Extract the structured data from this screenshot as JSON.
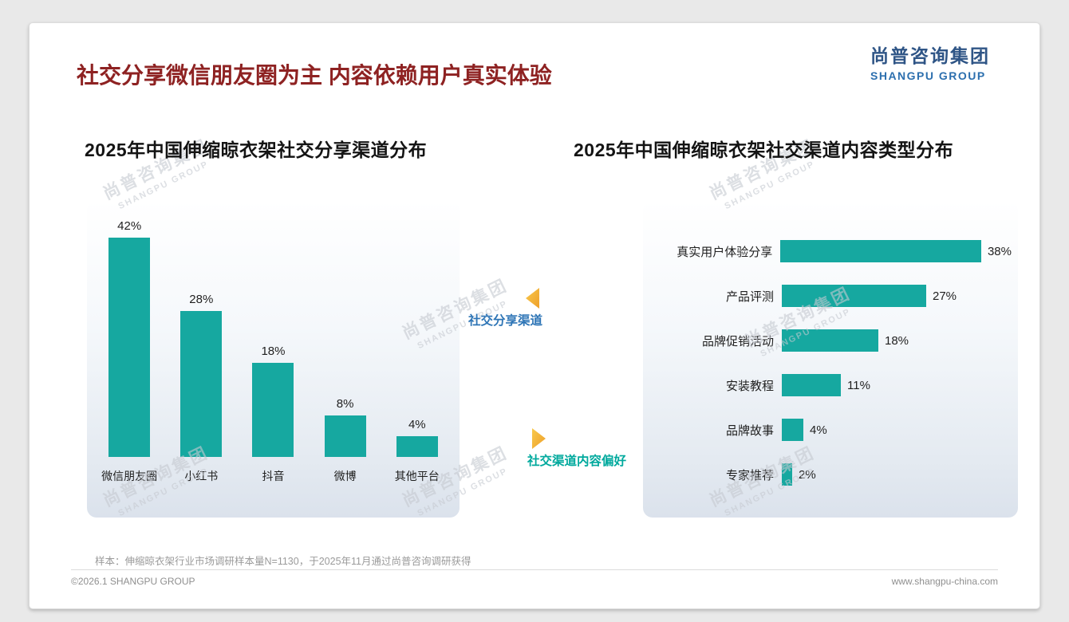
{
  "page": {
    "title": "社交分享微信朋友圈为主 内容依赖用户真实体验",
    "sample_note": "样本：伸缩晾衣架行业市场调研样本量N=1130，于2025年11月通过尚普咨询调研获得",
    "footer_left": "©2026.1 SHANGPU GROUP",
    "footer_right": "www.shangpu-china.com"
  },
  "logo": {
    "cn": "尚普咨询集团",
    "en": "SHANGPU GROUP"
  },
  "watermark": {
    "line1": "尚普咨询集团",
    "line2": "SHANGPU GROUP"
  },
  "annotations": {
    "share_channel": "社交分享渠道",
    "content_preference": "社交渠道内容偏好"
  },
  "colors": {
    "bar_teal": "#16A8A0",
    "title_red": "#8E2222",
    "logo_cn_blue": "#2F5586",
    "logo_en_blue": "#2C6FAE",
    "annotation_blue": "#2E75B6",
    "annotation_teal": "#00A99D",
    "arrow_orange": "#EE9F2A"
  },
  "chart_data": [
    {
      "type": "bar",
      "orientation": "vertical",
      "title": "2025年中国伸缩晾衣架社交分享渠道分布",
      "categories": [
        "微信朋友圈",
        "小红书",
        "抖音",
        "微博",
        "其他平台"
      ],
      "values": [
        42,
        28,
        18,
        8,
        4
      ],
      "unit": "%",
      "ylim": [
        0,
        45
      ],
      "grid": false,
      "data_labels": "above-bars",
      "legend": "none"
    },
    {
      "type": "bar",
      "orientation": "horizontal",
      "title": "2025年中国伸缩晾衣架社交渠道内容类型分布",
      "categories": [
        "真实用户体验分享",
        "产品评测",
        "品牌促销活动",
        "安装教程",
        "品牌故事",
        "专家推荐"
      ],
      "values": [
        38,
        27,
        18,
        11,
        4,
        2
      ],
      "unit": "%",
      "xlim": [
        0,
        40
      ],
      "grid": false,
      "data_labels": "right-of-bars",
      "legend": "none"
    }
  ]
}
